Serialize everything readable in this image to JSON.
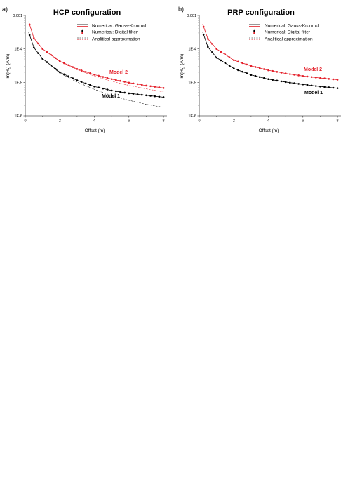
{
  "colors": {
    "model1": "#000000",
    "model2": "#e4202a"
  },
  "panels": [
    {
      "letter": "a)",
      "y_label_html": "Im(H<tspan font-size='4.5' dy='1.5'>z</tspan><tspan dy='-1.5'>)  (A/m)</tspan>"
    },
    {
      "letter": "b)"
    }
  ],
  "chart_data": [
    {
      "type": "line",
      "title": "HCP configuration",
      "xlabel": "Offset (m)",
      "ylabel": "Im(Hz)  (A/m)",
      "xlim": [
        0,
        8.2
      ],
      "ylim": [
        1e-06,
        0.001
      ],
      "yscale": "log",
      "xticks": [
        "0",
        "2",
        "4",
        "6",
        "8"
      ],
      "yticks": [
        "1E-6",
        "1E-5",
        "1E-4",
        "0.001"
      ],
      "legend": {
        "position": "top-right",
        "entries": [
          "Numerical: Gauss-Kronrod",
          "Numerical: Digital filter",
          "Analitical approximation"
        ]
      },
      "annotations": [
        "Model 2",
        "Model 1"
      ],
      "x": [
        0.2,
        0.5,
        1,
        2,
        3,
        4,
        5,
        6,
        7,
        8
      ],
      "series": [
        {
          "model": "Model 1",
          "method": "Numerical: Gauss-Kronrod",
          "values": [
            0.00031,
            0.00011,
            5.1e-05,
            2e-05,
            1.15e-05,
            7.5e-06,
            5.7e-06,
            4.7e-06,
            4.1e-06,
            3.6e-06
          ]
        },
        {
          "model": "Model 1",
          "method": "Analitical approximation",
          "values": [
            0.00031,
            0.00011,
            5.1e-05,
            1.9e-05,
            1.02e-05,
            6.2e-06,
            4e-06,
            2.9e-06,
            2.2e-06,
            1.8e-06
          ]
        },
        {
          "model": "Model 2",
          "method": "Numerical: Gauss-Kronrod",
          "values": [
            0.00065,
            0.00021,
            0.0001,
            4.3e-05,
            2.5e-05,
            1.7e-05,
            1.25e-05,
            9.8e-06,
            8e-06,
            6.8e-06
          ]
        },
        {
          "model": "Model 2",
          "method": "Analitical approximation",
          "values": [
            0.00065,
            0.00021,
            0.0001,
            4.2e-05,
            2.4e-05,
            1.55e-05,
            1.08e-05,
            8.1e-06,
            6.4e-06,
            5.2e-06
          ]
        }
      ]
    },
    {
      "type": "line",
      "title": "PRP configuration",
      "xlabel": "Offset (m)",
      "ylabel": "Im(Hz)  (A/m)",
      "xlim": [
        0,
        8.2
      ],
      "ylim": [
        1e-06,
        0.001
      ],
      "yscale": "log",
      "xticks": [
        "0",
        "2",
        "4",
        "6",
        "8"
      ],
      "yticks": [
        "1E-6",
        "1E-5",
        "1E-4",
        "0.001"
      ],
      "legend": {
        "position": "top-right",
        "entries": [
          "Numerical: Gauss-Kronrod",
          "Numerical: Digital filter",
          "Analitical approximation"
        ]
      },
      "annotations": [
        "Model 2",
        "Model 1"
      ],
      "x": [
        0.2,
        0.5,
        1,
        2,
        3,
        4,
        5,
        6,
        7,
        8
      ],
      "series": [
        {
          "model": "Model 1",
          "method": "Numerical: Gauss-Kronrod",
          "values": [
            0.00032,
            0.000115,
            5.5e-05,
            2.6e-05,
            1.67e-05,
            1.25e-05,
            1.02e-05,
            8.7e-06,
            7.5e-06,
            6.7e-06
          ]
        },
        {
          "model": "Model 1",
          "method": "Analitical approximation",
          "values": [
            0.00032,
            0.000115,
            5.5e-05,
            2.6e-05,
            1.67e-05,
            1.25e-05,
            1.02e-05,
            8.7e-06,
            7.5e-06,
            6.7e-06
          ]
        },
        {
          "model": "Model 2",
          "method": "Numerical: Gauss-Kronrod",
          "values": [
            0.00055,
            0.0002,
            0.0001,
            4.6e-05,
            3.1e-05,
            2.3e-05,
            1.85e-05,
            1.55e-05,
            1.35e-05,
            1.2e-05
          ]
        },
        {
          "model": "Model 2",
          "method": "Analitical approximation",
          "values": [
            0.00055,
            0.0002,
            0.0001,
            4.6e-05,
            3.1e-05,
            2.3e-05,
            1.85e-05,
            1.55e-05,
            1.35e-05,
            1.2e-05
          ]
        }
      ]
    }
  ]
}
